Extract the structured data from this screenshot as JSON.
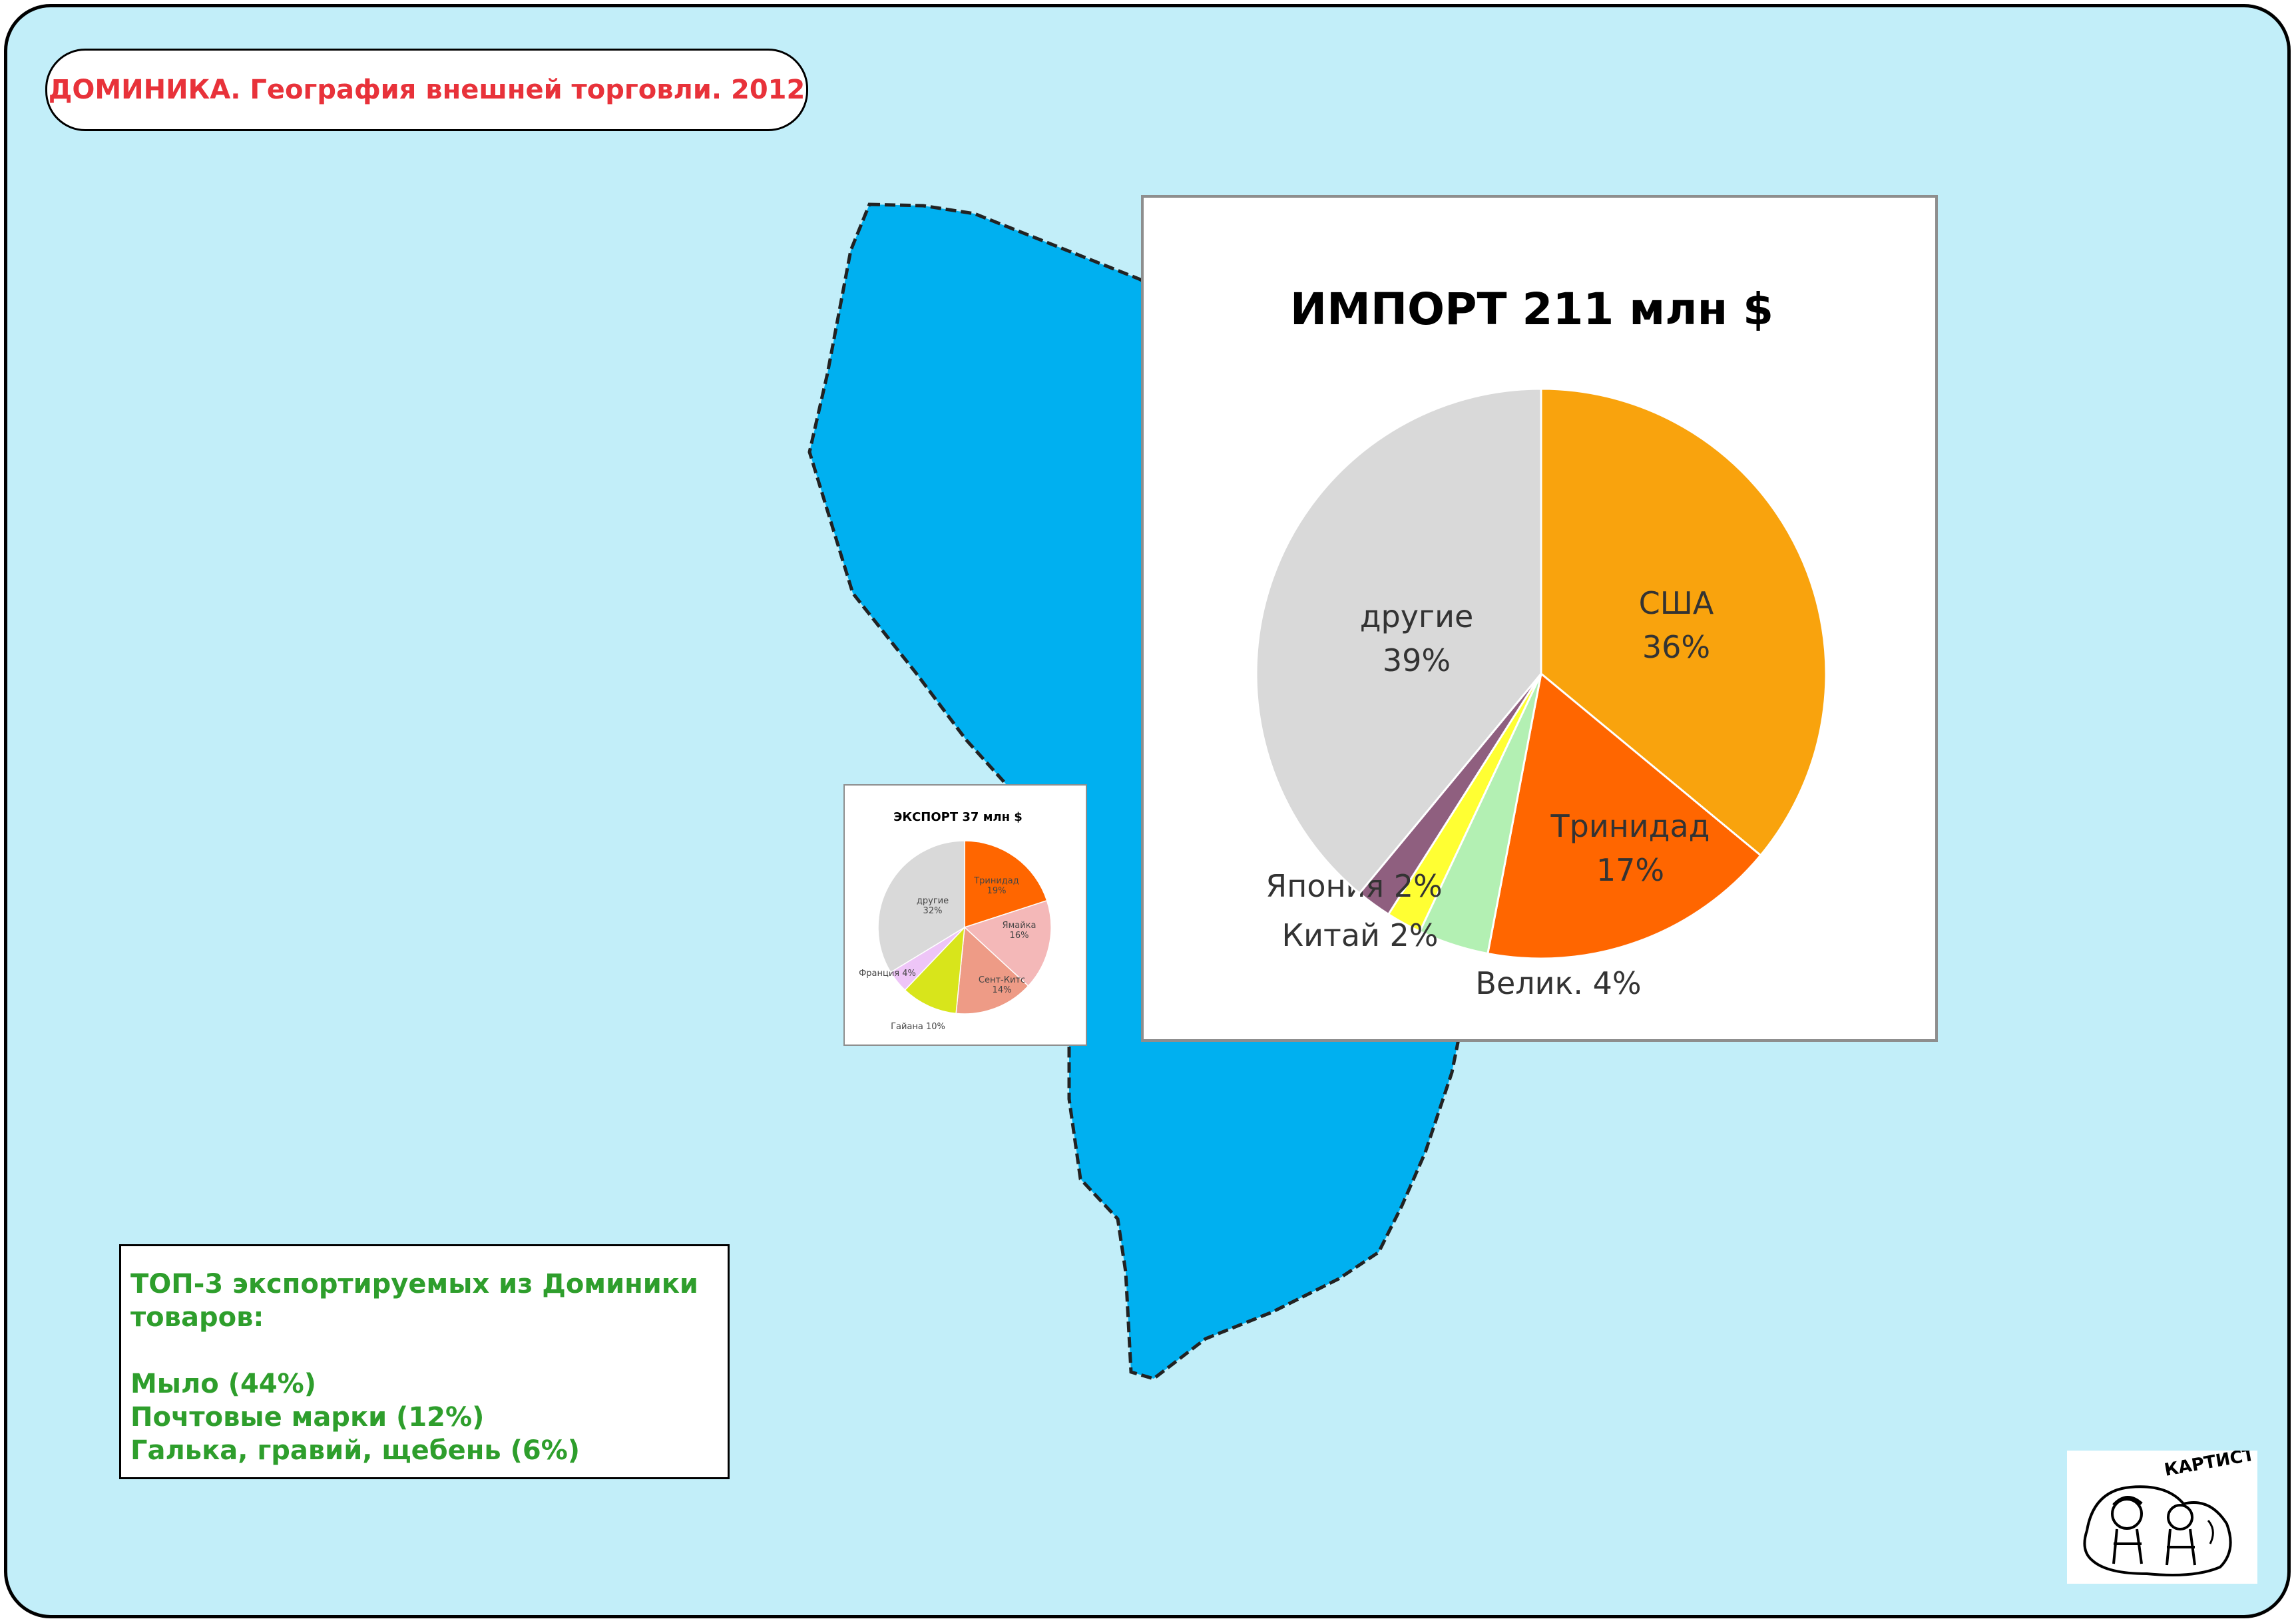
{
  "title": "ДОМИНИКА. География внешней торговли. 2012",
  "colors": {
    "sea": "#c2eef9",
    "island": "#00b0f0",
    "title_text": "#e8323a",
    "top3_text": "#2e9e2c"
  },
  "chart_data": [
    {
      "type": "pie",
      "title": "ИМПОРТ 211 млн $",
      "series": [
        {
          "label": "США",
          "value": 36,
          "color": "#f9a30d"
        },
        {
          "label": "Тринидад",
          "value": 17,
          "color": "#ff6600"
        },
        {
          "label": "Велик.",
          "value": 4,
          "color": "#b3f0b3"
        },
        {
          "label": "Китай",
          "value": 2,
          "color": "#ffff33"
        },
        {
          "label": "Япония",
          "value": 2,
          "color": "#8f5f7f"
        },
        {
          "label": "другие",
          "value": 39,
          "color": "#d9d9d9"
        }
      ]
    },
    {
      "type": "pie",
      "title": "ЭКСПОРТ 37 млн $",
      "series": [
        {
          "label": "Тринидад",
          "value": 19,
          "color": "#ff6600"
        },
        {
          "label": "Ямайка",
          "value": 16,
          "color": "#f4b8b8"
        },
        {
          "label": "Сент-Китс",
          "value": 14,
          "color": "#ee9b86"
        },
        {
          "label": "Гайана",
          "value": 10,
          "color": "#d8e51b"
        },
        {
          "label": "Франция",
          "value": 4,
          "color": "#eec5f7"
        },
        {
          "label": "другие",
          "value": 32,
          "color": "#d9d9d9"
        }
      ]
    }
  ],
  "top3": {
    "heading": "ТОП-3 экспортируемых из Доминики товаров:",
    "items": [
      "Мыло (44%)",
      "Почтовые марки (12%)",
      "Галька, гравий, щебень (6%)"
    ]
  },
  "logo": {
    "text": "КАРТИСТ"
  }
}
